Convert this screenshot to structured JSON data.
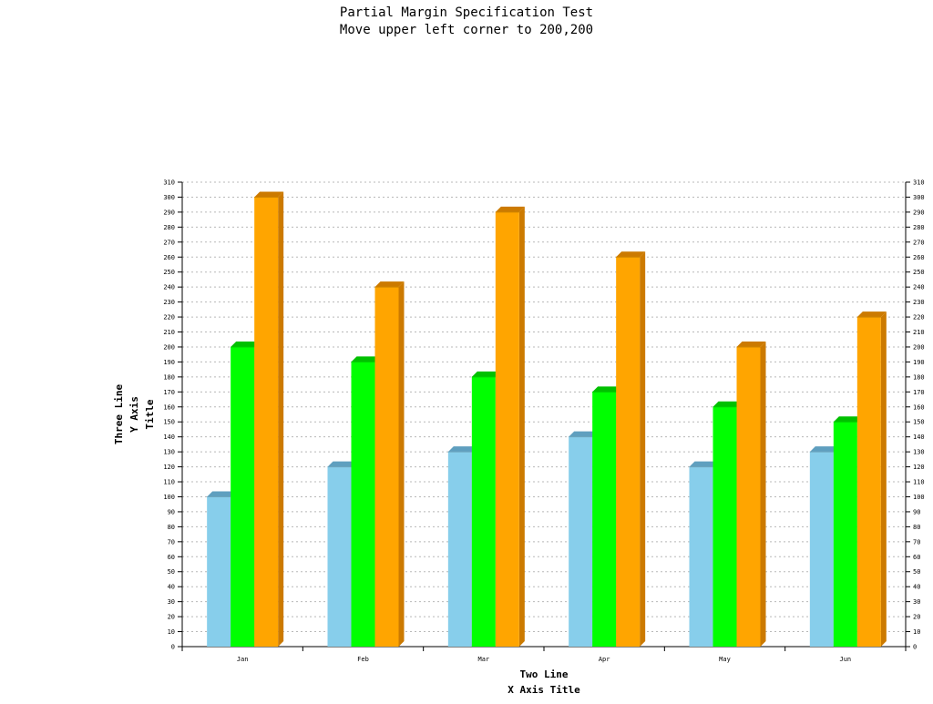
{
  "chart_data": {
    "type": "bar",
    "title": "Partial Margin Specification Test",
    "subtitle": "Move upper left corner to 200,200",
    "xlabel": [
      "Two Line",
      "X Axis Title"
    ],
    "ylabel": [
      "Three Line",
      "Y Axis",
      "Title"
    ],
    "categories": [
      "Jan",
      "Feb",
      "Mar",
      "Apr",
      "May",
      "Jun"
    ],
    "series": [
      {
        "values": [
          100,
          120,
          130,
          140,
          120,
          130
        ],
        "color": "#87CEEB",
        "top_color": "#5F9FBF"
      },
      {
        "values": [
          200,
          190,
          180,
          170,
          160,
          150
        ],
        "color": "#00FF00",
        "top_color": "#00C000"
      },
      {
        "values": [
          300,
          240,
          290,
          260,
          200,
          220
        ],
        "color": "#FFA500",
        "top_color": "#CC7A00"
      }
    ],
    "ylim": [
      0,
      310
    ],
    "ytick_step": 10,
    "grid": true,
    "bar_style": "3d",
    "secondary_y_axis": true
  }
}
